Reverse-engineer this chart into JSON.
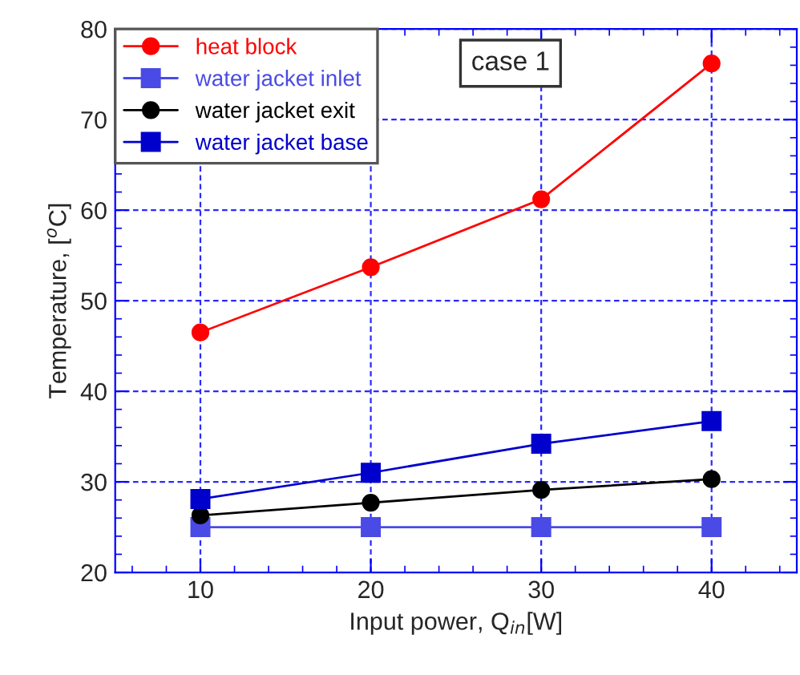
{
  "chart_data": {
    "type": "line",
    "xlabel": "Input power, Q$_{in}$[W]",
    "ylabel": "Temperature, [$^{o}$C]",
    "x": [
      10,
      20,
      30,
      40
    ],
    "series": [
      {
        "name": "heat block",
        "color": "#ff0000",
        "marker": "circle",
        "values": [
          46.5,
          53.7,
          61.2,
          76.2
        ]
      },
      {
        "name": "water jacket inlet",
        "color": "#4a4ae6",
        "marker": "square",
        "values": [
          25,
          25,
          25,
          25
        ]
      },
      {
        "name": "water jacket exit",
        "color": "#000000",
        "marker": "circle",
        "values": [
          26.3,
          27.7,
          29.1,
          30.3
        ]
      },
      {
        "name": "water jacket base",
        "color": "#0000cc",
        "marker": "square",
        "values": [
          28.1,
          31.0,
          34.2,
          36.7
        ]
      }
    ],
    "xlim": [
      5,
      45
    ],
    "xticks": [
      10,
      20,
      30,
      40
    ],
    "ylim": [
      20,
      80
    ],
    "yticks": [
      20,
      30,
      40,
      50,
      60,
      70,
      80
    ],
    "grid": true,
    "legend": "top left",
    "line_style": "solid",
    "annotations": [
      "case 1"
    ]
  }
}
